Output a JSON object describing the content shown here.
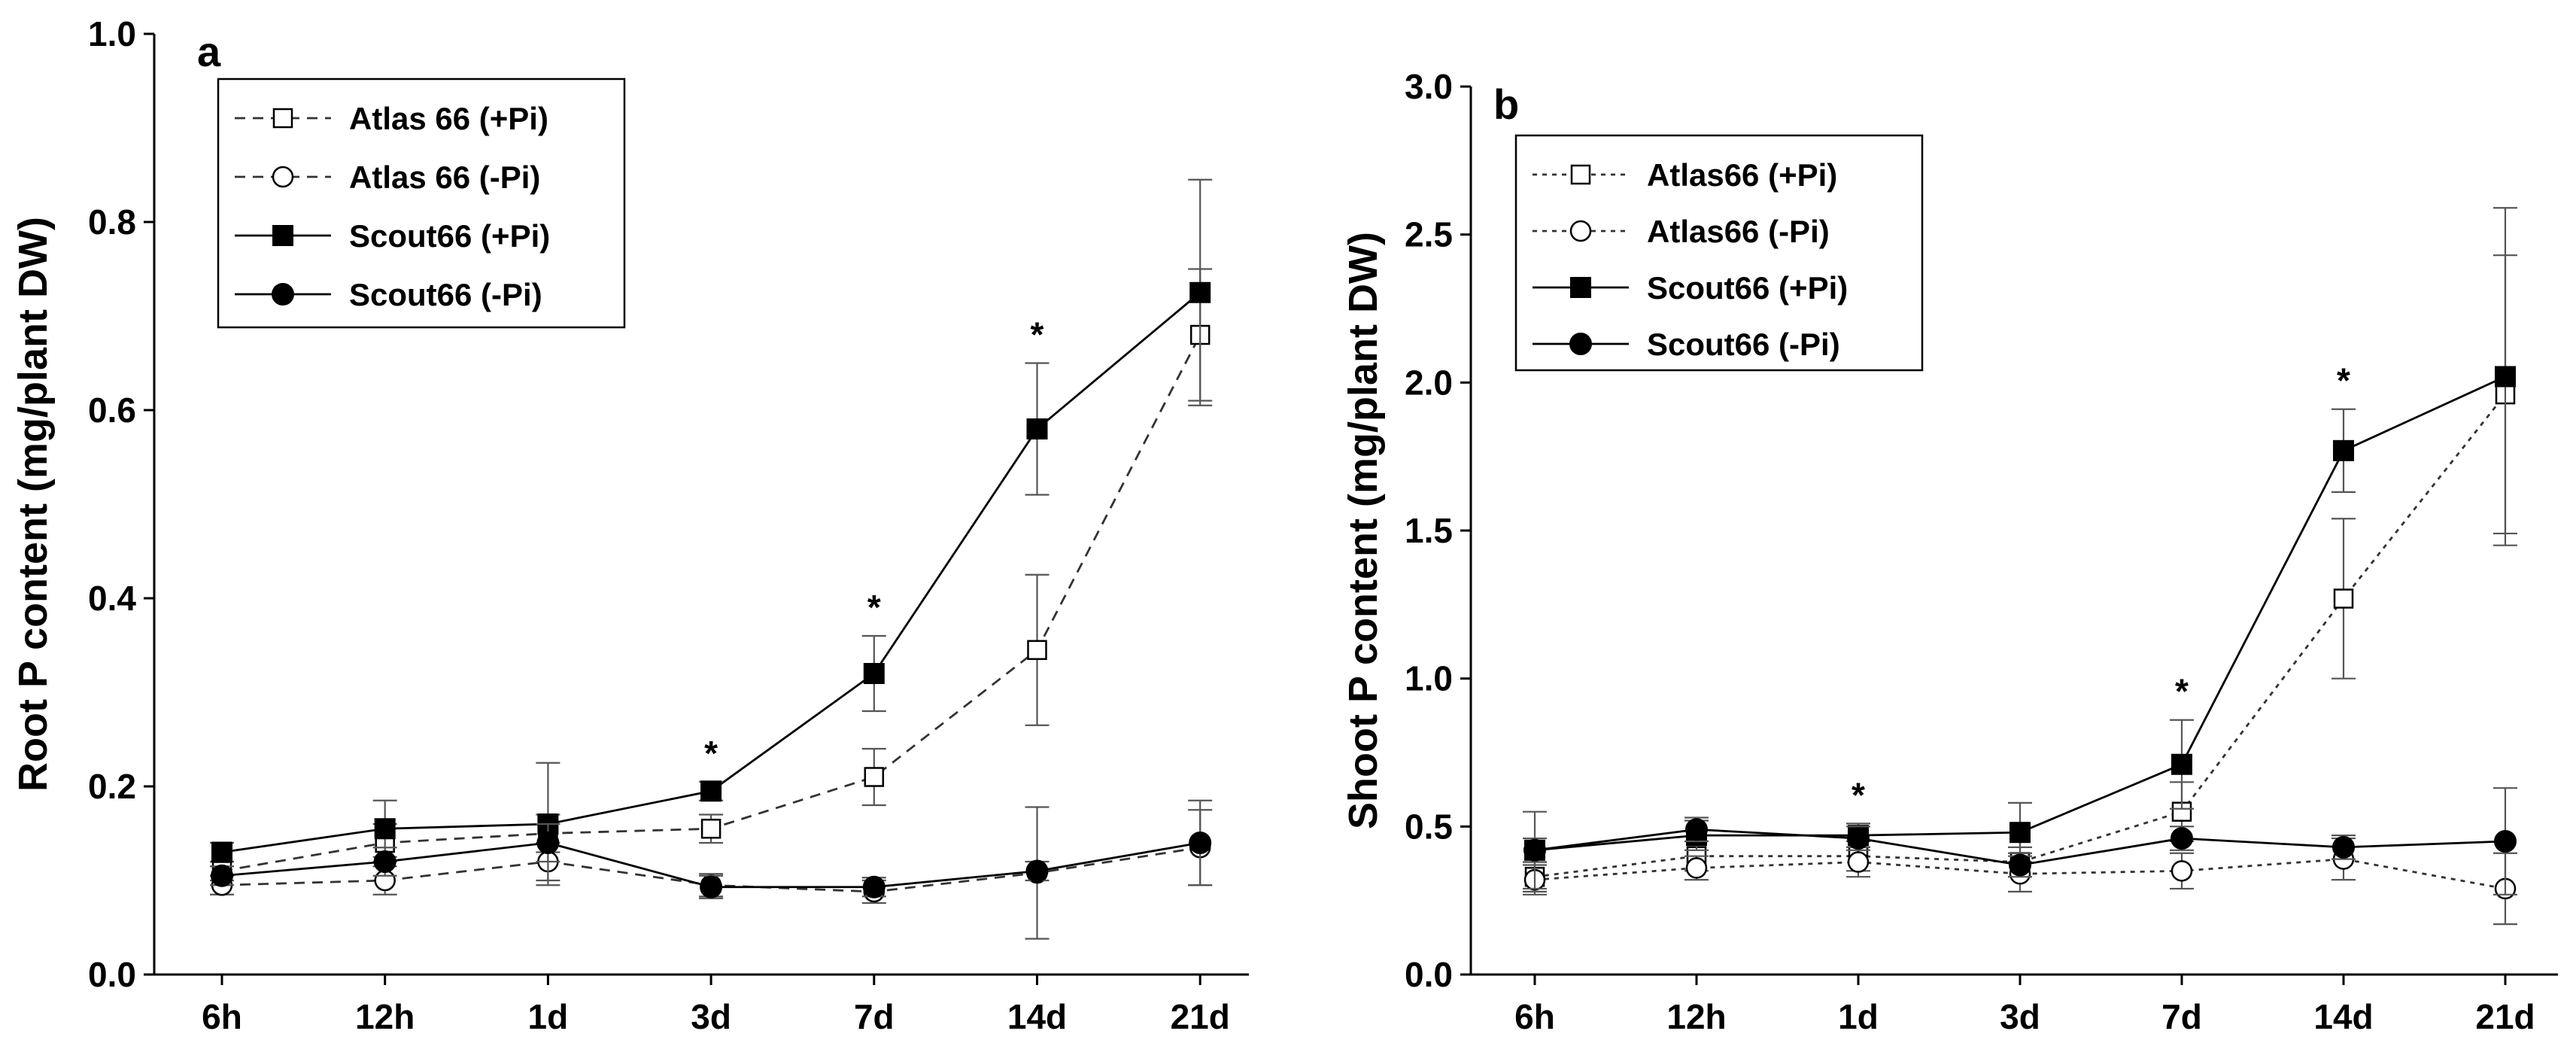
{
  "chart_data": [
    {
      "type": "line",
      "panel_label": "a",
      "title": "",
      "xlabel": "",
      "ylabel": "Root P content (mg/plant DW)",
      "categories": [
        "6h",
        "12h",
        "1d",
        "3d",
        "7d",
        "14d",
        "21d"
      ],
      "ylim": [
        0.0,
        1.0
      ],
      "yticks": [
        "0.0",
        "0.2",
        "0.4",
        "0.6",
        "0.8",
        "1.0"
      ],
      "ytick_values": [
        0.0,
        0.2,
        0.4,
        0.6,
        0.8,
        1.0
      ],
      "grid": false,
      "legend_position": "top-left",
      "series": [
        {
          "name": "Atlas 66 (+Pi)",
          "marker": "open-square",
          "line": "dashed",
          "values": [
            0.11,
            0.14,
            0.15,
            0.155,
            0.21,
            0.345,
            0.68
          ],
          "errors": [
            0.01,
            0.02,
            0.02,
            0.015,
            0.03,
            0.08,
            0.07
          ]
        },
        {
          "name": "Atlas 66 (-Pi)",
          "marker": "open-circle",
          "line": "dashed",
          "values": [
            0.095,
            0.1,
            0.12,
            0.095,
            0.088,
            0.108,
            0.135
          ],
          "errors": [
            0.01,
            0.015,
            0.02,
            0.012,
            0.012,
            0.07,
            0.04
          ]
        },
        {
          "name": "Scout66 (+Pi)",
          "marker": "filled-square",
          "line": "solid",
          "values": [
            0.13,
            0.155,
            0.16,
            0.195,
            0.32,
            0.58,
            0.725
          ],
          "errors": [
            0.01,
            0.03,
            0.065,
            0.01,
            0.04,
            0.07,
            0.12
          ]
        },
        {
          "name": "Scout66 (-Pi)",
          "marker": "filled-circle",
          "line": "solid",
          "values": [
            0.105,
            0.12,
            0.14,
            0.093,
            0.093,
            0.11,
            0.14
          ],
          "errors": [
            0.01,
            0.015,
            0.02,
            0.012,
            0.01,
            0.01,
            0.045
          ]
        }
      ],
      "significance": [
        {
          "category": "3d",
          "mark": "*"
        },
        {
          "category": "7d",
          "mark": "*"
        },
        {
          "category": "14d",
          "mark": "*"
        }
      ]
    },
    {
      "type": "line",
      "panel_label": "b",
      "title": "",
      "xlabel": "",
      "ylabel": "Shoot P content (mg/plant DW)",
      "categories": [
        "6h",
        "12h",
        "1d",
        "3d",
        "7d",
        "14d",
        "21d"
      ],
      "ylim": [
        0.0,
        3.0
      ],
      "yticks": [
        "0.0",
        "0.5",
        "1.0",
        "1.5",
        "2.0",
        "2.5",
        "3.0"
      ],
      "ytick_values": [
        0.0,
        0.5,
        1.0,
        1.5,
        2.0,
        2.5,
        3.0
      ],
      "grid": false,
      "legend_position": "top-left",
      "series": [
        {
          "name": "Atlas66 (+Pi)",
          "marker": "open-square",
          "line": "dotted",
          "values": [
            0.33,
            0.4,
            0.4,
            0.38,
            0.55,
            1.27,
            1.96
          ],
          "errors": [
            0.05,
            0.05,
            0.05,
            0.05,
            0.1,
            0.27,
            0.47
          ]
        },
        {
          "name": "Atlas66 (-Pi)",
          "marker": "open-circle",
          "line": "dotted",
          "values": [
            0.32,
            0.36,
            0.38,
            0.34,
            0.35,
            0.39,
            0.29
          ],
          "errors": [
            0.05,
            0.04,
            0.05,
            0.06,
            0.06,
            0.07,
            0.12
          ]
        },
        {
          "name": "Scout66 (+Pi)",
          "marker": "filled-square",
          "line": "solid",
          "values": [
            0.42,
            0.47,
            0.47,
            0.48,
            0.71,
            1.77,
            2.02
          ],
          "errors": [
            0.13,
            0.05,
            0.04,
            0.1,
            0.15,
            0.14,
            0.57
          ]
        },
        {
          "name": "Scout66 (-Pi)",
          "marker": "filled-circle",
          "line": "solid",
          "values": [
            0.42,
            0.49,
            0.46,
            0.37,
            0.46,
            0.43,
            0.45
          ],
          "errors": [
            0.04,
            0.04,
            0.04,
            0.04,
            0.04,
            0.04,
            0.18
          ]
        }
      ],
      "significance": [
        {
          "category": "1d",
          "mark": "*"
        },
        {
          "category": "7d",
          "mark": "*"
        },
        {
          "category": "14d",
          "mark": "*"
        }
      ]
    }
  ]
}
